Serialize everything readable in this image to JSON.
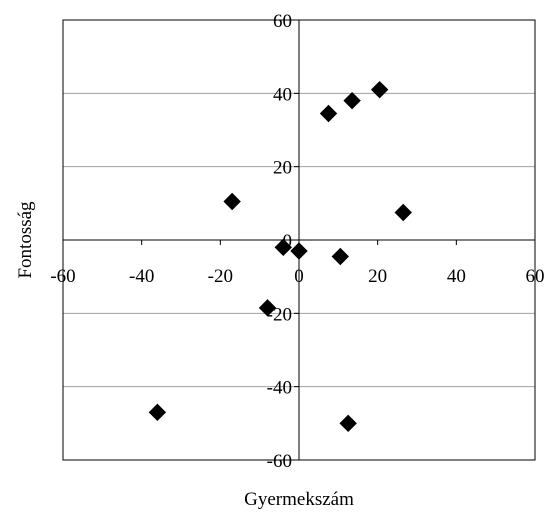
{
  "chart_data": {
    "type": "scatter",
    "title": "",
    "xlabel": "Gyermekszám",
    "ylabel": "Fontosság",
    "xlim": [
      -60,
      60
    ],
    "ylim": [
      -60,
      60
    ],
    "x_ticks": [
      -60,
      -40,
      -20,
      0,
      20,
      40,
      60
    ],
    "y_ticks": [
      -60,
      -40,
      -20,
      0,
      20,
      40,
      60
    ],
    "grid": "horizontal",
    "legend": "none",
    "marker": "diamond",
    "marker_color": "#000000",
    "series": [
      {
        "points": [
          {
            "x": 7.5,
            "y": 34.5
          },
          {
            "x": 13.5,
            "y": 38
          },
          {
            "x": 20.5,
            "y": 41
          },
          {
            "x": -17,
            "y": 10.5
          },
          {
            "x": 26.5,
            "y": 7.5
          },
          {
            "x": -4,
            "y": -2
          },
          {
            "x": 0,
            "y": -3
          },
          {
            "x": 10.5,
            "y": -4.5
          },
          {
            "x": -8,
            "y": -18.5
          },
          {
            "x": -36,
            "y": -47
          },
          {
            "x": 12.5,
            "y": -50
          }
        ]
      }
    ]
  }
}
